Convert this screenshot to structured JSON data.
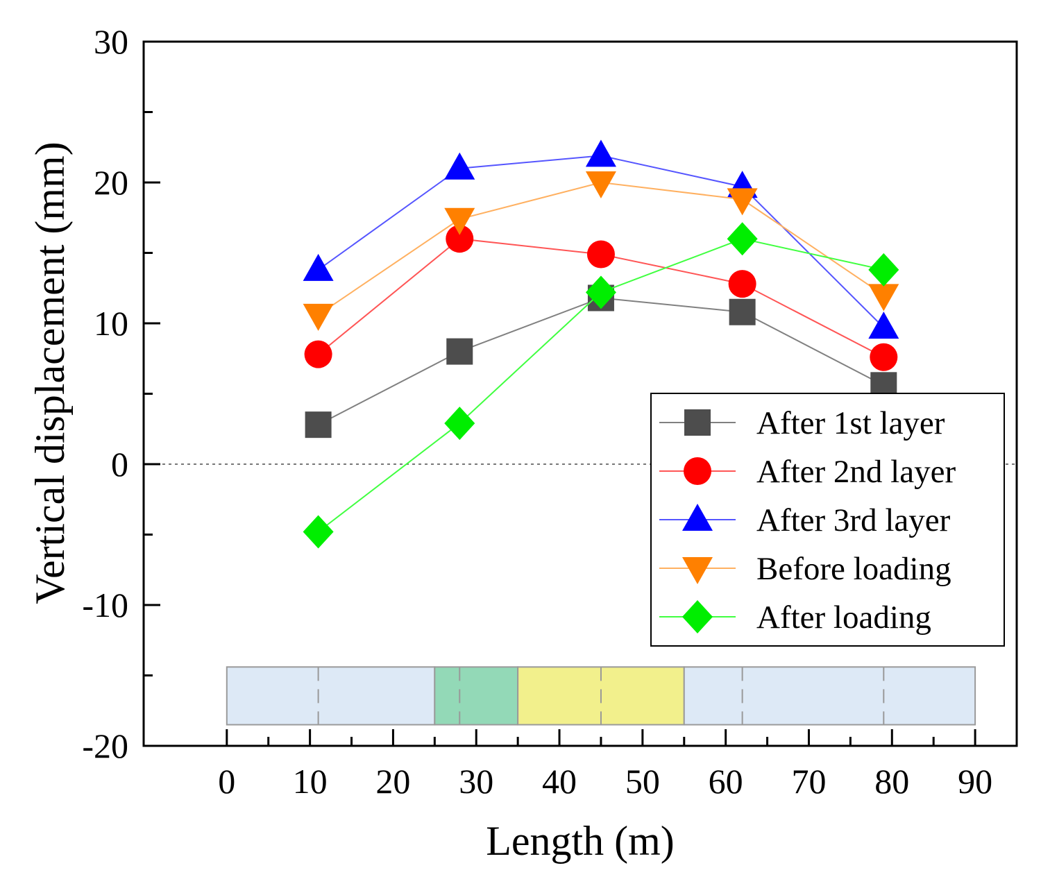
{
  "chart_data": {
    "type": "line",
    "xlabel": "Length (m)",
    "ylabel": "Vertical displacement (mm)",
    "xlim": [
      -10,
      95
    ],
    "ylim": [
      -20,
      30
    ],
    "xticks": [
      0,
      10,
      20,
      30,
      40,
      50,
      60,
      70,
      80,
      90
    ],
    "yticks": [
      -20,
      -10,
      0,
      10,
      20,
      30
    ],
    "x": [
      11,
      28,
      45,
      62,
      79
    ],
    "reference_line_y": 0,
    "legend_position": "right",
    "series": [
      {
        "name": "After 1st layer",
        "marker": "square",
        "color": "#4d4d4d",
        "line_color": "#808080",
        "values": [
          2.8,
          8.0,
          11.8,
          10.8,
          5.6
        ]
      },
      {
        "name": "After 2nd layer",
        "marker": "circle",
        "color": "#ff0000",
        "line_color": "#ff5555",
        "values": [
          7.8,
          16.0,
          14.9,
          12.8,
          7.6
        ]
      },
      {
        "name": "After 3rd layer",
        "marker": "triangle-up",
        "color": "#0000ff",
        "line_color": "#5555ff",
        "values": [
          13.8,
          21.0,
          21.9,
          19.7,
          9.7
        ]
      },
      {
        "name": "Before loading",
        "marker": "triangle-down",
        "color": "#ff8000",
        "line_color": "#ffb060",
        "values": [
          10.6,
          17.4,
          20.0,
          18.8,
          12.0
        ]
      },
      {
        "name": "After loading",
        "marker": "diamond",
        "color": "#00ee00",
        "line_color": "#40ff40",
        "values": [
          -4.8,
          2.9,
          12.2,
          16.0,
          13.8
        ]
      }
    ],
    "schematic_segments": [
      {
        "x_start": 0,
        "x_end": 25,
        "color": "#dde9f6"
      },
      {
        "x_start": 25,
        "x_end": 35,
        "color": "#93d9b7"
      },
      {
        "x_start": 35,
        "x_end": 55,
        "color": "#f2f08c"
      },
      {
        "x_start": 55,
        "x_end": 90,
        "color": "#dde9f6"
      }
    ],
    "schematic_y_range": [
      -18.5,
      -14.4
    ],
    "schematic_markers_x": [
      11,
      28,
      45,
      62,
      79
    ]
  }
}
